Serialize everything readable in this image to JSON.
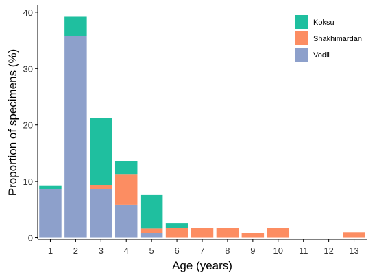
{
  "chart_data": {
    "type": "bar",
    "stacked": true,
    "title": "",
    "xlabel": "Age (years)",
    "ylabel": "Proportion of specimens (%)",
    "ylim": [
      -0.3,
      41.2
    ],
    "yticks": [
      0,
      10,
      20,
      30,
      40
    ],
    "grid": false,
    "legend_position": "top-right",
    "categories": [
      "1",
      "2",
      "3",
      "4",
      "5",
      "6",
      "7",
      "8",
      "9",
      "10",
      "11",
      "12",
      "13"
    ],
    "series": [
      {
        "name": "Vodil",
        "color": "#8DA0CB",
        "values": [
          8.6,
          35.8,
          8.6,
          5.9,
          0.8,
          0,
          0,
          0,
          0,
          0,
          0,
          0,
          0
        ]
      },
      {
        "name": "Shakhimardan",
        "color": "#FC8D62",
        "values": [
          0,
          0,
          0.8,
          5.3,
          0.8,
          1.7,
          1.7,
          1.7,
          0.8,
          1.7,
          0,
          0,
          1.0
        ]
      },
      {
        "name": "Koksu",
        "color": "#1FBF9F",
        "values": [
          0.6,
          3.4,
          11.9,
          2.4,
          6.0,
          0.9,
          0,
          0,
          0,
          0,
          0,
          0,
          0
        ]
      }
    ],
    "legend_order": [
      "Koksu",
      "Shakhimardan",
      "Vodil"
    ]
  }
}
